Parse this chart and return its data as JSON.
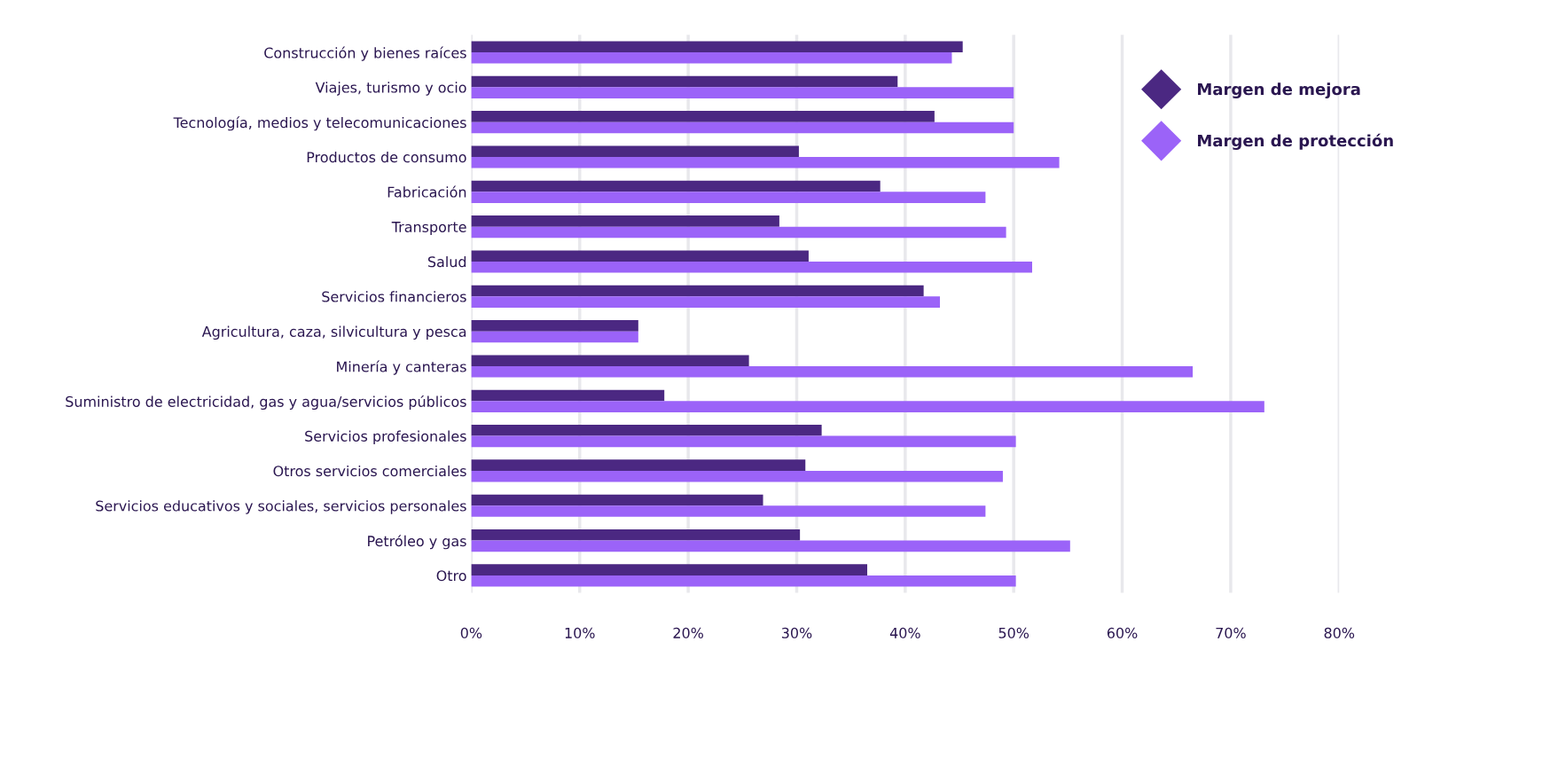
{
  "chart_data": {
    "type": "bar",
    "orientation": "horizontal",
    "categories": [
      "Construcción y bienes raíces",
      "Viajes, turismo y ocio",
      "Tecnología, medios y telecomunicaciones",
      "Productos de consumo",
      "Fabricación",
      "Transporte",
      "Salud",
      "Servicios financieros",
      "Agricultura, caza, silvicultura y pesca",
      "Minería y canteras",
      "Suministro de electricidad, gas y agua/servicios públicos",
      "Servicios profesionales",
      "Otros servicios comerciales",
      "Servicios educativos y sociales, servicios personales",
      "Petróleo y gas",
      "Otro"
    ],
    "series": [
      {
        "name": "Margen de mejora",
        "color": "#4b2882",
        "values": [
          45.3,
          39.3,
          42.7,
          30.2,
          37.7,
          28.4,
          31.1,
          41.7,
          15.4,
          25.6,
          17.8,
          32.3,
          30.8,
          26.9,
          30.3,
          36.5
        ]
      },
      {
        "name": "Margen de protección",
        "color": "#9b63f8",
        "values": [
          44.3,
          50.0,
          50.0,
          54.2,
          47.4,
          49.3,
          51.7,
          43.2,
          15.4,
          66.5,
          73.1,
          50.2,
          49.0,
          47.4,
          55.2,
          50.2
        ]
      }
    ],
    "xlim": [
      0,
      80
    ],
    "xticks": [
      {
        "value": 0,
        "label": "0%"
      },
      {
        "value": 10,
        "label": "10%"
      },
      {
        "value": 20,
        "label": "20%"
      },
      {
        "value": 30,
        "label": "30%"
      },
      {
        "value": 40,
        "label": "40%"
      },
      {
        "value": 50,
        "label": "50%"
      },
      {
        "value": 60,
        "label": "60%"
      },
      {
        "value": 70,
        "label": "70%"
      },
      {
        "value": 80,
        "label": "80%"
      }
    ],
    "grid": "x",
    "legend": "top right"
  }
}
